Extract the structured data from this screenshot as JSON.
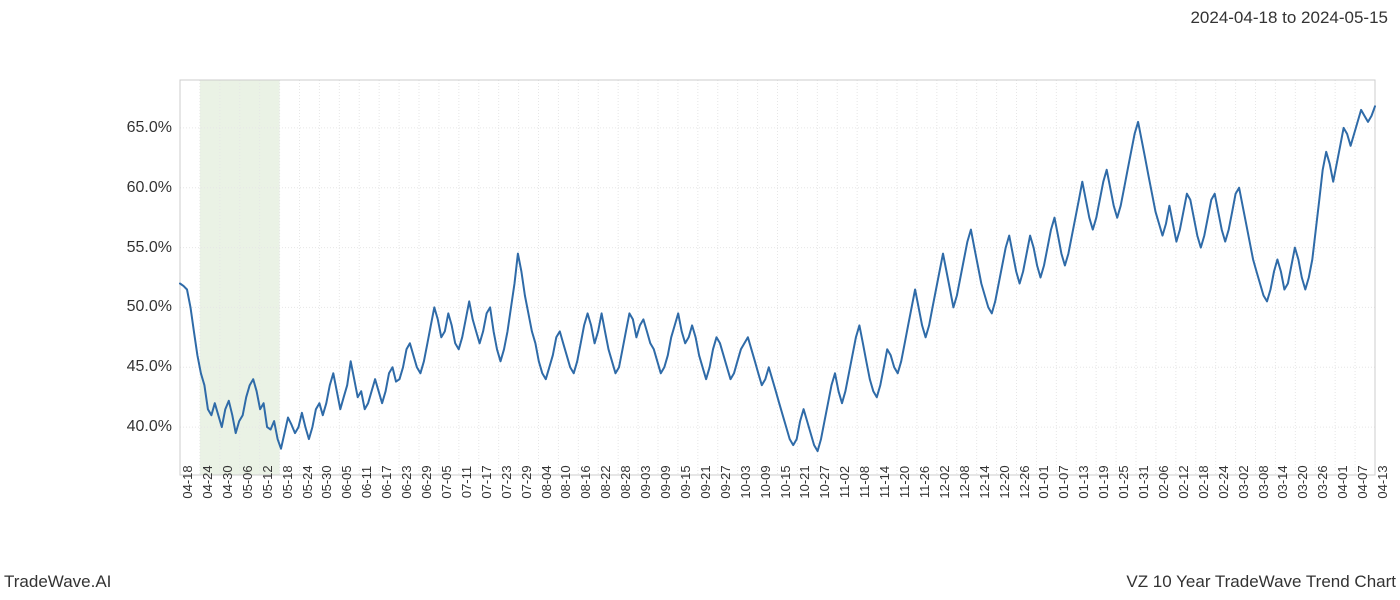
{
  "header": {
    "date_range": "2024-04-18 to 2024-05-15"
  },
  "footer": {
    "left": "TradeWave.AI",
    "right": "VZ 10 Year TradeWave Trend Chart"
  },
  "chart": {
    "type": "line",
    "background_color": "#ffffff",
    "grid_color": "#e6e6e6",
    "grid_dash": "1,2",
    "border_color": "#cccccc",
    "line_color": "#2f6ba8",
    "line_width": 2,
    "highlight_band": {
      "fill": "#d8e8d0",
      "opacity": 0.55,
      "x_start_index": 1,
      "x_end_index": 5
    },
    "ylim": [
      36,
      69
    ],
    "y_ticks": [
      40.0,
      45.0,
      50.0,
      55.0,
      60.0,
      65.0
    ],
    "y_tick_labels": [
      "40.0%",
      "45.0%",
      "50.0%",
      "55.0%",
      "60.0%",
      "65.0%"
    ],
    "x_tick_labels": [
      "04-18",
      "04-24",
      "04-30",
      "05-06",
      "05-12",
      "05-18",
      "05-24",
      "05-30",
      "06-05",
      "06-11",
      "06-17",
      "06-23",
      "06-29",
      "07-05",
      "07-11",
      "07-17",
      "07-23",
      "07-29",
      "08-04",
      "08-10",
      "08-16",
      "08-22",
      "08-28",
      "09-03",
      "09-09",
      "09-15",
      "09-21",
      "09-27",
      "10-03",
      "10-09",
      "10-15",
      "10-21",
      "10-27",
      "11-02",
      "11-08",
      "11-14",
      "11-20",
      "11-26",
      "12-02",
      "12-08",
      "12-14",
      "12-20",
      "12-26",
      "01-01",
      "01-07",
      "01-13",
      "01-19",
      "01-25",
      "01-31",
      "02-06",
      "02-12",
      "02-18",
      "02-24",
      "03-02",
      "03-08",
      "03-14",
      "03-20",
      "03-26",
      "04-01",
      "04-07",
      "04-13"
    ],
    "series": [
      52.0,
      51.8,
      51.5,
      50.0,
      48.0,
      46.0,
      44.5,
      43.5,
      41.5,
      41.0,
      42.0,
      41.0,
      40.0,
      41.5,
      42.2,
      41.0,
      39.5,
      40.5,
      41.0,
      42.5,
      43.5,
      44.0,
      43.0,
      41.5,
      42.0,
      40.0,
      39.8,
      40.5,
      39.0,
      38.2,
      39.5,
      40.8,
      40.2,
      39.5,
      40.0,
      41.2,
      40.0,
      39.0,
      40.0,
      41.5,
      42.0,
      41.0,
      42.0,
      43.5,
      44.5,
      43.0,
      41.5,
      42.5,
      43.5,
      45.5,
      44.0,
      42.5,
      43.0,
      41.5,
      42.0,
      43.0,
      44.0,
      43.0,
      42.0,
      43.0,
      44.5,
      45.0,
      43.8,
      44.0,
      45.0,
      46.5,
      47.0,
      46.0,
      45.0,
      44.5,
      45.5,
      47.0,
      48.5,
      50.0,
      49.0,
      47.5,
      48.0,
      49.5,
      48.5,
      47.0,
      46.5,
      47.5,
      49.0,
      50.5,
      49.0,
      48.0,
      47.0,
      48.0,
      49.5,
      50.0,
      48.0,
      46.5,
      45.5,
      46.5,
      48.0,
      50.0,
      52.0,
      54.5,
      53.0,
      51.0,
      49.5,
      48.0,
      47.0,
      45.5,
      44.5,
      44.0,
      45.0,
      46.0,
      47.5,
      48.0,
      47.0,
      46.0,
      45.0,
      44.5,
      45.5,
      47.0,
      48.5,
      49.5,
      48.5,
      47.0,
      48.0,
      49.5,
      48.0,
      46.5,
      45.5,
      44.5,
      45.0,
      46.5,
      48.0,
      49.5,
      49.0,
      47.5,
      48.5,
      49.0,
      48.0,
      47.0,
      46.5,
      45.5,
      44.5,
      45.0,
      46.0,
      47.5,
      48.5,
      49.5,
      48.0,
      47.0,
      47.5,
      48.5,
      47.5,
      46.0,
      45.0,
      44.0,
      45.0,
      46.5,
      47.5,
      47.0,
      46.0,
      45.0,
      44.0,
      44.5,
      45.5,
      46.5,
      47.0,
      47.5,
      46.5,
      45.5,
      44.5,
      43.5,
      44.0,
      45.0,
      44.0,
      43.0,
      42.0,
      41.0,
      40.0,
      39.0,
      38.5,
      39.0,
      40.5,
      41.5,
      40.5,
      39.5,
      38.5,
      38.0,
      39.0,
      40.5,
      42.0,
      43.5,
      44.5,
      43.0,
      42.0,
      43.0,
      44.5,
      46.0,
      47.5,
      48.5,
      47.0,
      45.5,
      44.0,
      43.0,
      42.5,
      43.5,
      45.0,
      46.5,
      46.0,
      45.0,
      44.5,
      45.5,
      47.0,
      48.5,
      50.0,
      51.5,
      50.0,
      48.5,
      47.5,
      48.5,
      50.0,
      51.5,
      53.0,
      54.5,
      53.0,
      51.5,
      50.0,
      51.0,
      52.5,
      54.0,
      55.5,
      56.5,
      55.0,
      53.5,
      52.0,
      51.0,
      50.0,
      49.5,
      50.5,
      52.0,
      53.5,
      55.0,
      56.0,
      54.5,
      53.0,
      52.0,
      53.0,
      54.5,
      56.0,
      55.0,
      53.5,
      52.5,
      53.5,
      55.0,
      56.5,
      57.5,
      56.0,
      54.5,
      53.5,
      54.5,
      56.0,
      57.5,
      59.0,
      60.5,
      59.0,
      57.5,
      56.5,
      57.5,
      59.0,
      60.5,
      61.5,
      60.0,
      58.5,
      57.5,
      58.5,
      60.0,
      61.5,
      63.0,
      64.5,
      65.5,
      64.0,
      62.5,
      61.0,
      59.5,
      58.0,
      57.0,
      56.0,
      57.0,
      58.5,
      57.0,
      55.5,
      56.5,
      58.0,
      59.5,
      59.0,
      57.5,
      56.0,
      55.0,
      56.0,
      57.5,
      59.0,
      59.5,
      58.0,
      56.5,
      55.5,
      56.5,
      58.0,
      59.5,
      60.0,
      58.5,
      57.0,
      55.5,
      54.0,
      53.0,
      52.0,
      51.0,
      50.5,
      51.5,
      53.0,
      54.0,
      53.0,
      51.5,
      52.0,
      53.5,
      55.0,
      54.0,
      52.5,
      51.5,
      52.5,
      54.0,
      56.5,
      59.0,
      61.5,
      63.0,
      62.0,
      60.5,
      62.0,
      63.5,
      65.0,
      64.5,
      63.5,
      64.5,
      65.5,
      66.5,
      66.0,
      65.5,
      66.0,
      66.8
    ]
  }
}
